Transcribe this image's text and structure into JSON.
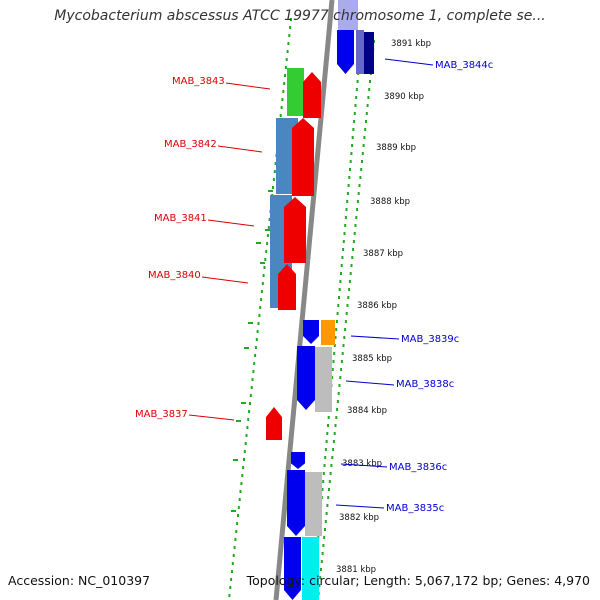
{
  "title": "Mycobacterium abscessus ATCC 19977 chromosome 1, complete se...",
  "footer": {
    "accession": "Accession: NC_010397",
    "summary": "Topology: circular; Length: 5,067,172 bp; Genes: 4,970"
  },
  "colors": {
    "left_label": "#dd0000",
    "right_label": "#0000cc",
    "axis_dash": "#22aa22",
    "backbone": "#888888",
    "strand_forward": "#ee0000",
    "strand_reverse": "#0000ee",
    "cds": "#4a86c0",
    "gene_green": "#33cc33",
    "gene_orange": "#ff9900",
    "gene_gray": "#bdbdbd",
    "gene_cyan": "#00eeee",
    "gene_navy": "#000088"
  },
  "scale_ticks": [
    "3891 kbp",
    "3890 kbp",
    "3889 kbp",
    "3888 kbp",
    "3887 kbp",
    "3886 kbp",
    "3885 kbp",
    "3884 kbp",
    "3883 kbp",
    "3882 kbp",
    "3881 kbp"
  ],
  "left_labels": [
    "MAB_3843",
    "MAB_3842",
    "MAB_3841",
    "MAB_3840",
    "MAB_3837"
  ],
  "right_labels": [
    "MAB_3844c",
    "MAB_3839c",
    "MAB_3838c",
    "MAB_3836c",
    "MAB_3835c"
  ]
}
